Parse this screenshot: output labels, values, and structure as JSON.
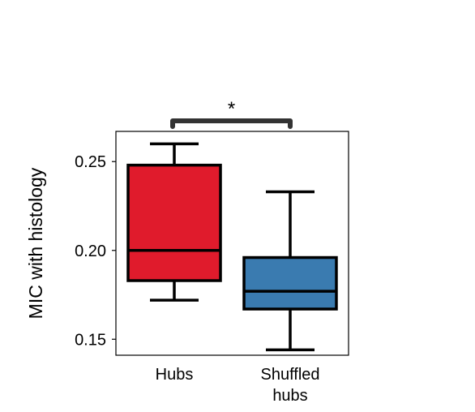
{
  "chart_data": {
    "type": "box",
    "ylabel": "MIC with histology",
    "xlabel": "",
    "ylim": [
      0.141,
      0.267
    ],
    "yticks": [
      0.15,
      0.2,
      0.25
    ],
    "ytick_labels": [
      "0.15",
      "0.20",
      "0.25"
    ],
    "categories": [
      "Hubs",
      "Shuffled hubs"
    ],
    "category_label_lines": [
      [
        "Hubs"
      ],
      [
        "Shuffled",
        "hubs"
      ]
    ],
    "boxes": [
      {
        "name": "Hubs",
        "whisker_low": 0.172,
        "q1": 0.183,
        "median": 0.2,
        "q3": 0.248,
        "whisker_high": 0.26,
        "color": "#e01b2c"
      },
      {
        "name": "Shuffled hubs",
        "whisker_low": 0.144,
        "q1": 0.167,
        "median": 0.177,
        "q3": 0.196,
        "whisker_high": 0.233,
        "color": "#3a7bb0"
      }
    ],
    "significance": {
      "between": [
        0,
        1
      ],
      "label": "*",
      "color": "#333333"
    },
    "grid": false
  }
}
